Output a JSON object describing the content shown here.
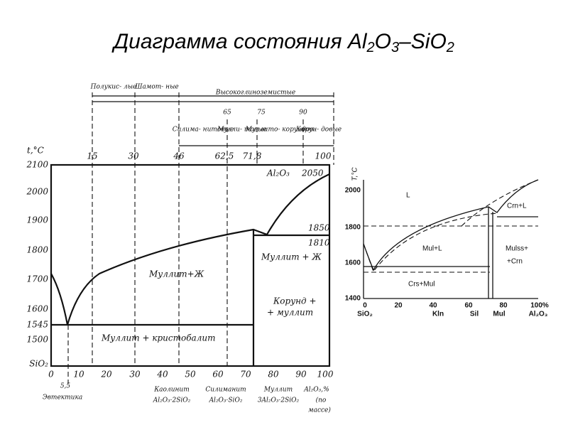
{
  "title": {
    "parts": [
      "Диаграмма состояния Al",
      "2",
      "O",
      "3",
      "–SiO",
      "2"
    ]
  },
  "left": {
    "y_label": "t,°C",
    "y_ticks": [
      "2100",
      "2000",
      "1900",
      "1800",
      "1700",
      "1600",
      "1545",
      "1500",
      "SiO₂"
    ],
    "x_ticks": [
      "0",
      "10",
      "20",
      "30",
      "40",
      "50",
      "60",
      "70",
      "80",
      "90",
      "100"
    ],
    "top_axis": [
      "15",
      "30",
      "46",
      "62,5",
      "71,8",
      "100"
    ],
    "groups": [
      "Полукис- лые",
      "Шамот- ные",
      "Высокоглиноземистые"
    ],
    "subgroup_numbers": [
      "65",
      "75",
      "90"
    ],
    "subgroups": [
      "Силима- нитовые",
      "Мулли- товые",
      "Муллито- корундов.",
      "Корун- довые"
    ],
    "regions": [
      "Al₂O₃",
      "2050",
      "1850",
      "1810",
      "Муллит + Ж",
      "Муллит+Ж",
      "Корунд +",
      "+ муллит",
      "Муллит + кристобалит"
    ],
    "bottom": [
      "5,5",
      "Эвтектика",
      "Каолинит",
      "Al₂O₃·2SiO₂",
      "Силиманит",
      "Al₂O₃·SiO₂",
      "Муллит",
      "3Al₂O₃·2SiO₂",
      "Al₂O₃,%",
      "(по",
      "массе)"
    ]
  },
  "right": {
    "y_label": "T,°C",
    "y_ticks": [
      "2000",
      "1800",
      "1600",
      "1400"
    ],
    "x_ticks": [
      "0",
      "20",
      "40",
      "60",
      "80",
      "100%"
    ],
    "x_names": [
      "SiO₂",
      "Kln",
      "Sil",
      "Mul",
      "Al₂O₃"
    ],
    "regions": [
      "L",
      "Crn+L",
      "Mul+L",
      "Mulss+",
      "+Crn",
      "Crs+Mul"
    ]
  }
}
